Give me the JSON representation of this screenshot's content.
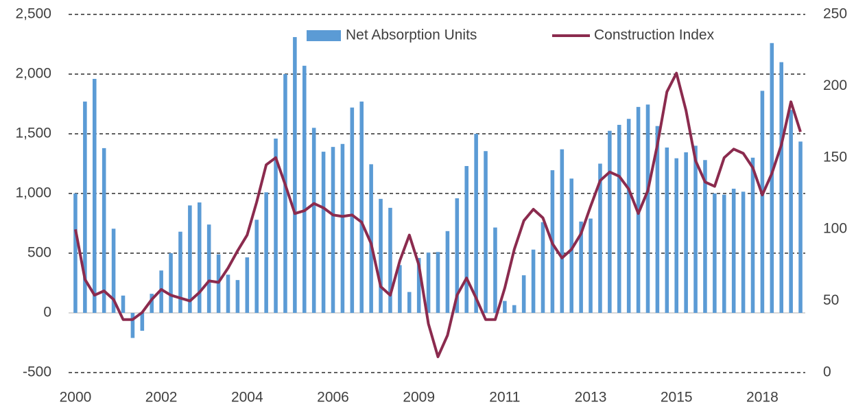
{
  "chart_data": {
    "type": "bar-line",
    "categories": [
      "2000",
      null,
      null,
      null,
      null,
      null,
      null,
      null,
      null,
      "2002",
      null,
      null,
      null,
      null,
      null,
      null,
      null,
      null,
      "2004",
      null,
      null,
      null,
      null,
      null,
      null,
      null,
      null,
      "2006",
      null,
      null,
      null,
      null,
      null,
      null,
      null,
      null,
      "2009",
      null,
      null,
      null,
      null,
      null,
      null,
      null,
      null,
      "2011",
      null,
      null,
      null,
      null,
      null,
      null,
      null,
      null,
      "2013",
      null,
      null,
      null,
      null,
      null,
      null,
      null,
      null,
      "2015",
      null,
      null,
      null,
      null,
      null,
      null,
      null,
      null,
      "2018",
      null,
      null,
      null,
      null
    ],
    "series": [
      {
        "name": "Net Absorption Units",
        "type": "bar",
        "color": "#5b9bd5",
        "values": [
          1000,
          1770,
          1960,
          1380,
          705,
          145,
          -210,
          -150,
          160,
          355,
          500,
          680,
          900,
          925,
          740,
          490,
          320,
          275,
          465,
          780,
          1010,
          1460,
          2000,
          2310,
          2070,
          1550,
          1350,
          1390,
          1415,
          1720,
          1770,
          1245,
          955,
          880,
          400,
          175,
          460,
          505,
          510,
          685,
          960,
          1230,
          1500,
          1355,
          715,
          100,
          65,
          315,
          530,
          760,
          1195,
          1370,
          1125,
          765,
          790,
          1250,
          1525,
          1575,
          1625,
          1725,
          1745,
          1565,
          1385,
          1295,
          1345,
          1400,
          1280,
          1000,
          990,
          1040,
          1015,
          1300,
          1860,
          2260,
          2100,
          1700,
          1435
        ]
      },
      {
        "name": "Construction Index",
        "type": "line",
        "axis": "y2",
        "color": "#8b2b4e",
        "values": [
          100,
          65,
          54,
          57,
          51,
          37,
          37,
          42,
          51,
          58,
          54,
          52,
          50,
          56,
          64,
          63,
          73,
          85,
          96,
          119,
          145,
          150,
          131,
          111,
          113,
          118,
          115,
          110,
          109,
          110,
          105,
          90,
          60,
          54,
          78,
          96,
          75,
          34,
          11,
          26,
          54,
          66,
          52,
          37,
          37,
          59,
          86,
          106,
          114,
          108,
          90,
          80,
          86,
          97,
          116,
          134,
          140,
          137,
          128,
          111,
          127,
          159,
          196,
          209,
          183,
          148,
          133,
          130,
          150,
          156,
          153,
          143,
          124,
          139,
          159,
          189,
          168
        ]
      }
    ],
    "ylim": [
      -500,
      2500
    ],
    "yticks": [
      {
        "value": -500,
        "label": "-500"
      },
      0,
      500,
      {
        "value": 1000,
        "label": "1,000"
      },
      {
        "value": 1500,
        "label": "1,500"
      },
      {
        "value": 2000,
        "label": "2,000"
      },
      {
        "value": 2500,
        "label": "2,500"
      }
    ],
    "y2lim": [
      0,
      250
    ],
    "y2ticks": [
      0,
      50,
      100,
      150,
      200,
      250
    ],
    "grid": true,
    "legend": "top"
  }
}
